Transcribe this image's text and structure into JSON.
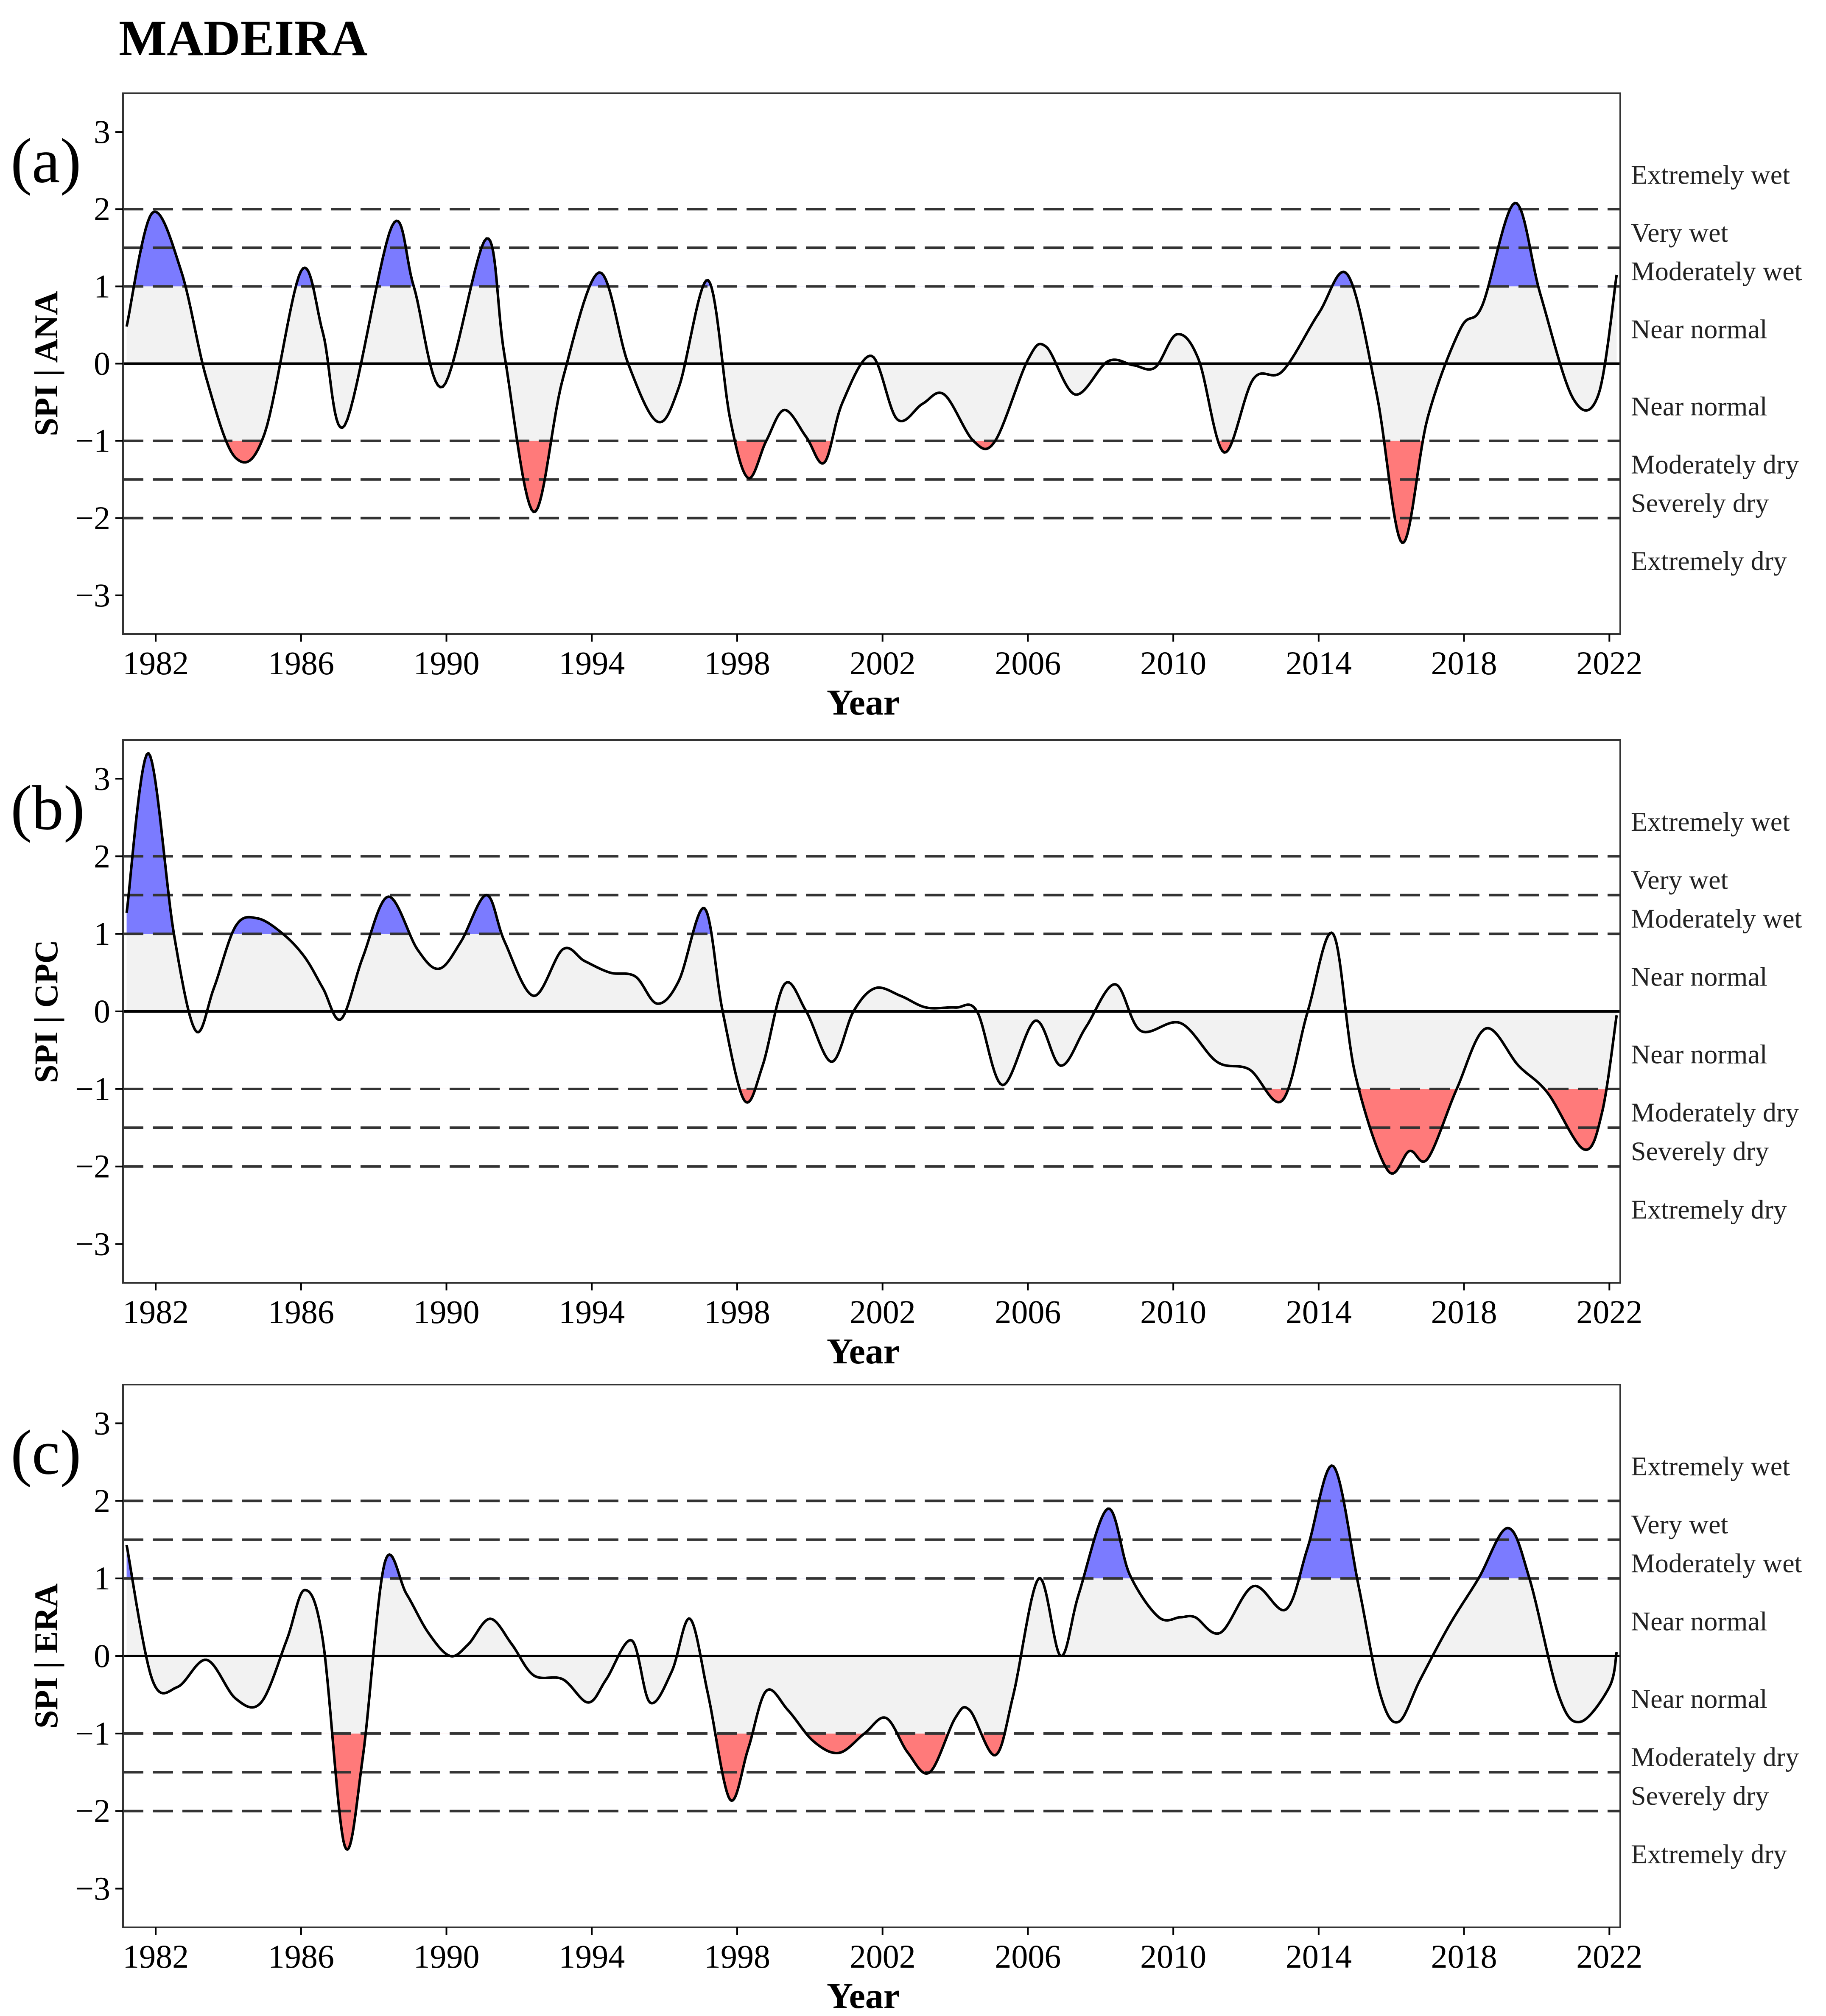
{
  "figure": {
    "title": "MADEIRA"
  },
  "colors": {
    "wet": "#7b7bff",
    "dry": "#ff7a7a",
    "neutral": "#f2f2f2",
    "line": "#000000"
  },
  "chart_data": [
    {
      "panel_label": "(a)",
      "type": "area",
      "title": "",
      "xlabel": "Year",
      "ylabel": "SPI | ANA",
      "xlim": [
        1981.1,
        2022.3
      ],
      "ylim": [
        -3.5,
        3.5
      ],
      "xticks": [
        1982,
        1986,
        1990,
        1994,
        1998,
        2002,
        2006,
        2010,
        2014,
        2018,
        2022
      ],
      "yticks": [
        3,
        2,
        1,
        0,
        -1,
        -2,
        -3
      ],
      "ytick_labels": [
        "3",
        "2",
        "1",
        "0",
        "−1",
        "−2",
        "−3"
      ],
      "thresholds": [
        2,
        1.5,
        1,
        -1,
        -1.5,
        -2
      ],
      "categories": [
        "Extremely wet",
        "Very wet",
        "Moderately wet",
        "Near normal",
        "Near normal",
        "Moderately dry",
        "Severely dry",
        "Extremely dry"
      ],
      "series": [
        {
          "name": "SPI | ANA",
          "x": [
            1981.2,
            1981.9,
            1982.7,
            1983.4,
            1984.2,
            1985.0,
            1986.0,
            1986.6,
            1987.2,
            1988.5,
            1989.1,
            1989.9,
            1991.1,
            1991.6,
            1992.4,
            1993.2,
            1994.2,
            1995.0,
            1995.8,
            1996.4,
            1997.2,
            1997.8,
            1998.3,
            1998.8,
            1999.3,
            1999.9,
            2000.4,
            2000.9,
            2001.7,
            2002.4,
            2003.1,
            2003.7,
            2004.5,
            2005.1,
            2006.0,
            2006.5,
            2007.3,
            2008.2,
            2008.9,
            2009.5,
            2010.1,
            2010.7,
            2011.4,
            2012.2,
            2013.0,
            2014.0,
            2014.8,
            2015.6,
            2016.3,
            2017.0,
            2017.9,
            2018.5,
            2019.4,
            2020.1,
            2021.0,
            2021.7,
            2022.2
          ],
          "y": [
            0.48,
            1.95,
            1.2,
            -0.2,
            -1.22,
            -0.9,
            1.2,
            0.4,
            -0.8,
            1.78,
            1.0,
            -0.3,
            1.62,
            0.1,
            -1.92,
            -0.2,
            1.18,
            0.0,
            -0.75,
            -0.3,
            1.08,
            -0.7,
            -1.48,
            -1.0,
            -0.6,
            -0.95,
            -1.28,
            -0.5,
            0.1,
            -0.72,
            -0.52,
            -0.4,
            -1.0,
            -1.0,
            0.05,
            0.22,
            -0.4,
            0.03,
            -0.02,
            -0.05,
            0.38,
            0.05,
            -1.15,
            -0.2,
            -0.1,
            0.65,
            1.15,
            -0.4,
            -2.32,
            -0.7,
            0.45,
            0.75,
            2.08,
            0.9,
            -0.45,
            -0.4,
            1.15
          ]
        }
      ]
    },
    {
      "panel_label": "(b)",
      "type": "area",
      "title": "",
      "xlabel": "Year",
      "ylabel": "SPI | CPC",
      "xlim": [
        1981.1,
        2022.3
      ],
      "ylim": [
        -3.5,
        3.5
      ],
      "xticks": [
        1982,
        1986,
        1990,
        1994,
        1998,
        2002,
        2006,
        2010,
        2014,
        2018,
        2022
      ],
      "yticks": [
        3,
        2,
        1,
        0,
        -1,
        -2,
        -3
      ],
      "ytick_labels": [
        "3",
        "2",
        "1",
        "0",
        "−1",
        "−2",
        "−3"
      ],
      "thresholds": [
        2,
        1.5,
        1,
        -1,
        -1.5,
        -2
      ],
      "categories": [
        "Extremely wet",
        "Very wet",
        "Moderately wet",
        "Near normal",
        "Near normal",
        "Moderately dry",
        "Severely dry",
        "Extremely dry"
      ],
      "series": [
        {
          "name": "SPI | CPC",
          "x": [
            1981.2,
            1981.8,
            1982.5,
            1983.1,
            1983.6,
            1984.2,
            1984.8,
            1985.5,
            1986.1,
            1986.6,
            1987.1,
            1987.7,
            1988.4,
            1989.2,
            1989.8,
            1990.4,
            1991.1,
            1991.6,
            1992.4,
            1993.2,
            1993.8,
            1994.5,
            1995.2,
            1995.8,
            1996.4,
            1997.1,
            1997.6,
            1998.2,
            1998.7,
            1999.3,
            1999.9,
            2000.6,
            2001.2,
            2001.8,
            2002.5,
            2003.2,
            2004.0,
            2004.6,
            2005.3,
            2006.2,
            2006.9,
            2007.6,
            2008.4,
            2009.1,
            2010.2,
            2011.2,
            2012.1,
            2013.0,
            2013.7,
            2014.4,
            2015.0,
            2015.9,
            2016.5,
            2017.0,
            2017.8,
            2018.6,
            2019.5,
            2020.3,
            2021.3,
            2021.8,
            2022.2
          ],
          "y": [
            1.27,
            3.33,
            1.0,
            -0.25,
            0.3,
            1.1,
            1.2,
            1.0,
            0.7,
            0.3,
            -0.1,
            0.7,
            1.48,
            0.8,
            0.55,
            0.9,
            1.5,
            0.9,
            0.2,
            0.8,
            0.65,
            0.5,
            0.45,
            0.1,
            0.4,
            1.33,
            0.0,
            -1.15,
            -0.7,
            0.35,
            0.0,
            -0.65,
            0.0,
            0.3,
            0.2,
            0.05,
            0.05,
            0.0,
            -0.95,
            -0.12,
            -0.7,
            -0.2,
            0.35,
            -0.25,
            -0.15,
            -0.65,
            -0.75,
            -1.15,
            0.0,
            1.0,
            -0.8,
            -2.05,
            -1.8,
            -1.9,
            -1.0,
            -0.22,
            -0.7,
            -1.05,
            -1.78,
            -1.3,
            -0.05
          ]
        }
      ]
    },
    {
      "panel_label": "(c)",
      "type": "area",
      "title": "",
      "xlabel": "Year",
      "ylabel": "SPI | ERA",
      "xlim": [
        1981.1,
        2022.3
      ],
      "ylim": [
        -3.5,
        3.5
      ],
      "xticks": [
        1982,
        1986,
        1990,
        1994,
        1998,
        2002,
        2006,
        2010,
        2014,
        2018,
        2022
      ],
      "yticks": [
        3,
        2,
        1,
        0,
        -1,
        -2,
        -3
      ],
      "ytick_labels": [
        "3",
        "2",
        "1",
        "0",
        "−1",
        "−2",
        "−3"
      ],
      "thresholds": [
        2,
        1.5,
        1,
        -1,
        -1.5,
        -2
      ],
      "categories": [
        "Extremely wet",
        "Very wet",
        "Moderately wet",
        "Near normal",
        "Near normal",
        "Moderately dry",
        "Severely dry",
        "Extremely dry"
      ],
      "series": [
        {
          "name": "SPI | ERA",
          "x": [
            1981.2,
            1981.9,
            1982.6,
            1983.4,
            1984.2,
            1984.9,
            1985.6,
            1986.1,
            1986.6,
            1987.2,
            1987.7,
            1988.3,
            1988.9,
            1989.5,
            1990.1,
            1990.6,
            1991.2,
            1991.8,
            1992.4,
            1993.2,
            1993.9,
            1994.4,
            1995.1,
            1995.6,
            1996.2,
            1996.7,
            1997.2,
            1997.8,
            1998.3,
            1998.8,
            1999.4,
            2000.1,
            2000.8,
            2001.5,
            2002.1,
            2002.7,
            2003.3,
            2004.0,
            2004.4,
            2005.1,
            2005.6,
            2006.3,
            2006.9,
            2007.4,
            2008.2,
            2008.8,
            2009.6,
            2010.2,
            2010.6,
            2011.3,
            2012.2,
            2013.1,
            2013.7,
            2014.4,
            2015.1,
            2015.7,
            2016.2,
            2016.8,
            2017.6,
            2018.4,
            2019.2,
            2019.8,
            2020.6,
            2021.2,
            2022.0,
            2022.2
          ],
          "y": [
            1.43,
            -0.3,
            -0.4,
            -0.05,
            -0.55,
            -0.6,
            0.2,
            0.85,
            0.2,
            -2.45,
            -1.3,
            1.2,
            0.8,
            0.3,
            0.0,
            0.15,
            0.48,
            0.15,
            -0.25,
            -0.3,
            -0.6,
            -0.3,
            0.2,
            -0.6,
            -0.2,
            0.48,
            -0.5,
            -1.85,
            -1.2,
            -0.45,
            -0.7,
            -1.1,
            -1.25,
            -1.0,
            -0.8,
            -1.25,
            -1.5,
            -0.8,
            -0.7,
            -1.28,
            -0.5,
            1.0,
            0.0,
            0.8,
            1.9,
            1.05,
            0.5,
            0.5,
            0.5,
            0.3,
            0.9,
            0.6,
            1.4,
            2.45,
            0.9,
            -0.5,
            -0.85,
            -0.3,
            0.4,
            1.0,
            1.65,
            1.0,
            -0.5,
            -0.85,
            -0.4,
            0.05
          ]
        }
      ]
    }
  ]
}
